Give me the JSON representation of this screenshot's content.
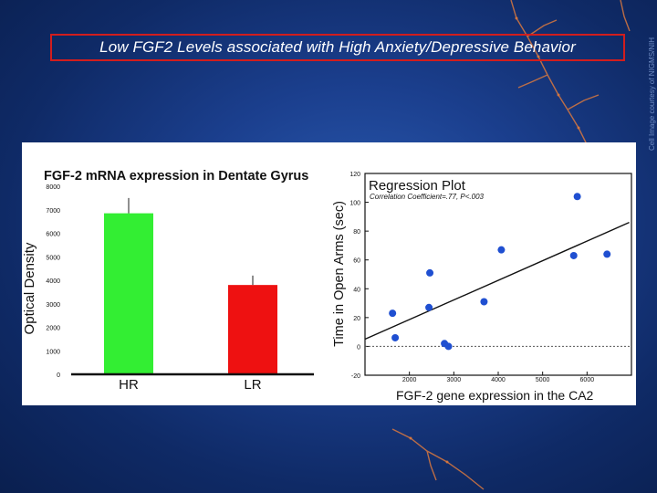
{
  "slide": {
    "title": "Low FGF2 Levels associated with High Anxiety/Depressive Behavior",
    "credit": "Cell Image courtesy of NIGMS/NIH"
  },
  "colors": {
    "background": "#1b3f8e",
    "title_border": "#d21d1d",
    "hr_bar": "#33ee33",
    "lr_bar": "#ee1111",
    "scatter_point": "#1f4fd1"
  },
  "chart_data": [
    {
      "type": "bar",
      "title": "FGF-2 mRNA expression in Dentate Gyrus",
      "ylabel": "Optical Density",
      "categories": [
        "HR",
        "LR"
      ],
      "values": [
        6850,
        3800
      ],
      "errors": [
        650,
        400
      ],
      "ylim": [
        0,
        8000
      ],
      "yticks": [
        0,
        1000,
        2000,
        3000,
        4000,
        5000,
        6000,
        7000,
        8000
      ]
    },
    {
      "type": "scatter",
      "title": "Regression Plot",
      "annotation": "Correlation Coefficient=.77, P<.003",
      "xlabel": "FGF-2 gene expression in the CA2",
      "ylabel": "Time in Open Arms (sec)",
      "xlim": [
        1000,
        7000
      ],
      "ylim": [
        -20,
        120
      ],
      "xticks": [
        2000,
        3000,
        4000,
        5000,
        6000
      ],
      "yticks": [
        -20,
        0,
        20,
        40,
        60,
        80,
        100,
        120
      ],
      "points": [
        {
          "x": 1620,
          "y": 23
        },
        {
          "x": 1680,
          "y": 6
        },
        {
          "x": 2460,
          "y": 51
        },
        {
          "x": 2440,
          "y": 27
        },
        {
          "x": 2790,
          "y": 2
        },
        {
          "x": 2880,
          "y": 0
        },
        {
          "x": 3680,
          "y": 31
        },
        {
          "x": 4070,
          "y": 67
        },
        {
          "x": 5700,
          "y": 63
        },
        {
          "x": 5780,
          "y": 104
        },
        {
          "x": 6450,
          "y": 64
        }
      ],
      "regression": {
        "x": [
          1000,
          6950
        ],
        "y": [
          5,
          86
        ]
      },
      "zero_line": 0,
      "grid": false
    }
  ]
}
